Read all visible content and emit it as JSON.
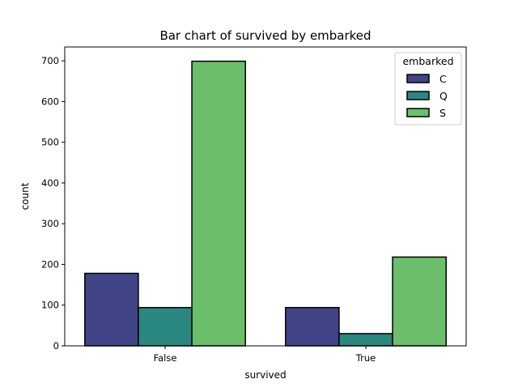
{
  "chart_data": {
    "type": "bar",
    "title": "Bar chart of survived by embarked",
    "xlabel": "survived",
    "ylabel": "count",
    "categories": [
      "False",
      "True"
    ],
    "series": [
      {
        "name": "C",
        "color": "#414487",
        "values": [
          178,
          94
        ]
      },
      {
        "name": "Q",
        "color": "#2a8780",
        "values": [
          94,
          30
        ]
      },
      {
        "name": "S",
        "color": "#6bbf6b",
        "values": [
          699,
          218
        ]
      }
    ],
    "yticks": [
      0,
      100,
      200,
      300,
      400,
      500,
      600,
      700
    ],
    "ylim": [
      0,
      734
    ],
    "grid": false,
    "legend": {
      "title": "embarked",
      "position": "top-right"
    }
  }
}
